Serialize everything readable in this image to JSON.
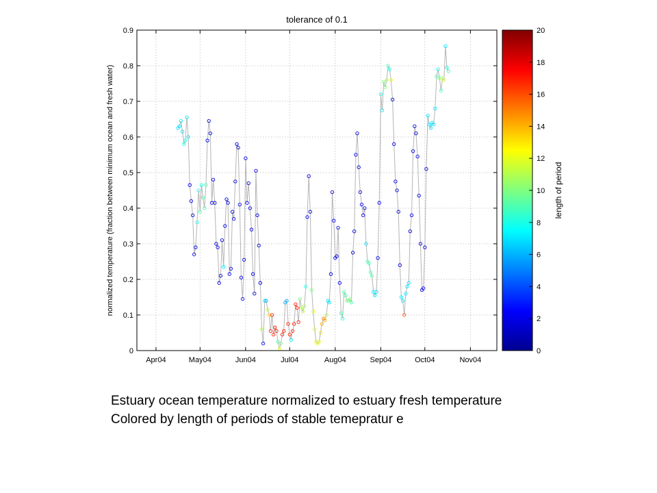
{
  "chart_data": {
    "type": "scatter",
    "title": "tolerance of 0.1",
    "ylabel": "normalized temperature (fraction between minimum ocean and fresh water)",
    "colorbar_label": "length of period",
    "ylim": [
      0,
      0.9
    ],
    "yticks": [
      0,
      0.1,
      0.2,
      0.3,
      0.4,
      0.5,
      0.6,
      0.7,
      0.8,
      0.9
    ],
    "ytick_labels": [
      "0",
      "0.1",
      "0.2",
      "0.3",
      "0.4",
      "0.5",
      "0.6",
      "0.7",
      "0.8",
      "0.9"
    ],
    "xlim": [
      "2004-03-19",
      "2004-11-19"
    ],
    "xticks": [
      "2004-04-01",
      "2004-05-01",
      "2004-06-01",
      "2004-07-01",
      "2004-08-01",
      "2004-09-01",
      "2004-10-01",
      "2004-11-01"
    ],
    "xtick_labels": [
      "Apr04",
      "May04",
      "Jun04",
      "Jul04",
      "Aug04",
      "Sep04",
      "Oct04",
      "Nov04"
    ],
    "colorbar_range": [
      0,
      20
    ],
    "colorbar_ticks": [
      0,
      2,
      4,
      6,
      8,
      10,
      12,
      14,
      16,
      18,
      20
    ],
    "grid": true,
    "colormap": "jet",
    "line_color": "#b4b4b4",
    "points": [
      {
        "x": "2004-04-16",
        "y": 0.625,
        "c": 7
      },
      {
        "x": "2004-04-17",
        "y": 0.63,
        "c": 7
      },
      {
        "x": "2004-04-18",
        "y": 0.645,
        "c": 7
      },
      {
        "x": "2004-04-19",
        "y": 0.615,
        "c": 7
      },
      {
        "x": "2004-04-20",
        "y": 0.58,
        "c": 8
      },
      {
        "x": "2004-04-21",
        "y": 0.59,
        "c": 8
      },
      {
        "x": "2004-04-22",
        "y": 0.655,
        "c": 7
      },
      {
        "x": "2004-04-23",
        "y": 0.6,
        "c": 7
      },
      {
        "x": "2004-04-24",
        "y": 0.465,
        "c": 2
      },
      {
        "x": "2004-04-25",
        "y": 0.42,
        "c": 2
      },
      {
        "x": "2004-04-26",
        "y": 0.38,
        "c": 2
      },
      {
        "x": "2004-04-27",
        "y": 0.27,
        "c": 2
      },
      {
        "x": "2004-04-28",
        "y": 0.29,
        "c": 2
      },
      {
        "x": "2004-04-29",
        "y": 0.36,
        "c": 8
      },
      {
        "x": "2004-04-30",
        "y": 0.45,
        "c": 8
      },
      {
        "x": "2004-05-01",
        "y": 0.39,
        "c": 9
      },
      {
        "x": "2004-05-02",
        "y": 0.465,
        "c": 8
      },
      {
        "x": "2004-05-03",
        "y": 0.43,
        "c": 9
      },
      {
        "x": "2004-05-04",
        "y": 0.4,
        "c": 9
      },
      {
        "x": "2004-05-05",
        "y": 0.465,
        "c": 9
      },
      {
        "x": "2004-05-06",
        "y": 0.59,
        "c": 2
      },
      {
        "x": "2004-05-07",
        "y": 0.645,
        "c": 2
      },
      {
        "x": "2004-05-08",
        "y": 0.61,
        "c": 2
      },
      {
        "x": "2004-05-09",
        "y": 0.415,
        "c": 2
      },
      {
        "x": "2004-05-10",
        "y": 0.48,
        "c": 2
      },
      {
        "x": "2004-05-11",
        "y": 0.415,
        "c": 2
      },
      {
        "x": "2004-05-12",
        "y": 0.3,
        "c": 2
      },
      {
        "x": "2004-05-13",
        "y": 0.29,
        "c": 2
      },
      {
        "x": "2004-05-14",
        "y": 0.19,
        "c": 2
      },
      {
        "x": "2004-05-15",
        "y": 0.21,
        "c": 2
      },
      {
        "x": "2004-05-16",
        "y": 0.31,
        "c": 2
      },
      {
        "x": "2004-05-17",
        "y": 0.235,
        "c": 7
      },
      {
        "x": "2004-05-18",
        "y": 0.35,
        "c": 2
      },
      {
        "x": "2004-05-19",
        "y": 0.425,
        "c": 2
      },
      {
        "x": "2004-05-20",
        "y": 0.415,
        "c": 2
      },
      {
        "x": "2004-05-21",
        "y": 0.215,
        "c": 2
      },
      {
        "x": "2004-05-22",
        "y": 0.23,
        "c": 2
      },
      {
        "x": "2004-05-23",
        "y": 0.39,
        "c": 2
      },
      {
        "x": "2004-05-24",
        "y": 0.37,
        "c": 2
      },
      {
        "x": "2004-05-25",
        "y": 0.475,
        "c": 2
      },
      {
        "x": "2004-05-26",
        "y": 0.58,
        "c": 2
      },
      {
        "x": "2004-05-27",
        "y": 0.57,
        "c": 2
      },
      {
        "x": "2004-05-28",
        "y": 0.41,
        "c": 2
      },
      {
        "x": "2004-05-29",
        "y": 0.205,
        "c": 2
      },
      {
        "x": "2004-05-30",
        "y": 0.145,
        "c": 2
      },
      {
        "x": "2004-05-31",
        "y": 0.255,
        "c": 2
      },
      {
        "x": "2004-06-01",
        "y": 0.54,
        "c": 2
      },
      {
        "x": "2004-06-02",
        "y": 0.415,
        "c": 2
      },
      {
        "x": "2004-06-03",
        "y": 0.47,
        "c": 2
      },
      {
        "x": "2004-06-04",
        "y": 0.4,
        "c": 2
      },
      {
        "x": "2004-06-05",
        "y": 0.34,
        "c": 2
      },
      {
        "x": "2004-06-06",
        "y": 0.215,
        "c": 2
      },
      {
        "x": "2004-06-07",
        "y": 0.16,
        "c": 2
      },
      {
        "x": "2004-06-08",
        "y": 0.505,
        "c": 2
      },
      {
        "x": "2004-06-09",
        "y": 0.38,
        "c": 2
      },
      {
        "x": "2004-06-10",
        "y": 0.295,
        "c": 2
      },
      {
        "x": "2004-06-11",
        "y": 0.19,
        "c": 2
      },
      {
        "x": "2004-06-12",
        "y": 0.06,
        "c": 11
      },
      {
        "x": "2004-06-13",
        "y": 0.02,
        "c": 2
      },
      {
        "x": "2004-06-14",
        "y": 0.14,
        "c": 7
      },
      {
        "x": "2004-06-15",
        "y": 0.14,
        "c": 6
      },
      {
        "x": "2004-06-16",
        "y": 0.115,
        "c": 11
      },
      {
        "x": "2004-06-17",
        "y": 0.1,
        "c": 13
      },
      {
        "x": "2004-06-18",
        "y": 0.055,
        "c": 17
      },
      {
        "x": "2004-06-19",
        "y": 0.1,
        "c": 17
      },
      {
        "x": "2004-06-20",
        "y": 0.045,
        "c": 17
      },
      {
        "x": "2004-06-21",
        "y": 0.065,
        "c": 17
      },
      {
        "x": "2004-06-22",
        "y": 0.055,
        "c": 17
      },
      {
        "x": "2004-06-23",
        "y": 0.025,
        "c": 9
      },
      {
        "x": "2004-06-24",
        "y": 0.005,
        "c": 12
      },
      {
        "x": "2004-06-25",
        "y": 0.02,
        "c": 10
      },
      {
        "x": "2004-06-26",
        "y": 0.045,
        "c": 17
      },
      {
        "x": "2004-06-27",
        "y": 0.055,
        "c": 17
      },
      {
        "x": "2004-06-28",
        "y": 0.135,
        "c": 6
      },
      {
        "x": "2004-06-29",
        "y": 0.14,
        "c": 6
      },
      {
        "x": "2004-06-30",
        "y": 0.075,
        "c": 17
      },
      {
        "x": "2004-07-01",
        "y": 0.045,
        "c": 17
      },
      {
        "x": "2004-07-02",
        "y": 0.03,
        "c": 7
      },
      {
        "x": "2004-07-03",
        "y": 0.055,
        "c": 17
      },
      {
        "x": "2004-07-04",
        "y": 0.075,
        "c": 17
      },
      {
        "x": "2004-07-05",
        "y": 0.13,
        "c": 17
      },
      {
        "x": "2004-07-06",
        "y": 0.12,
        "c": 17
      },
      {
        "x": "2004-07-07",
        "y": 0.08,
        "c": 17
      },
      {
        "x": "2004-07-08",
        "y": 0.145,
        "c": 10
      },
      {
        "x": "2004-07-09",
        "y": 0.12,
        "c": 11
      },
      {
        "x": "2004-07-10",
        "y": 0.11,
        "c": 11
      },
      {
        "x": "2004-07-11",
        "y": 0.125,
        "c": 11
      },
      {
        "x": "2004-07-12",
        "y": 0.18,
        "c": 8
      },
      {
        "x": "2004-07-13",
        "y": 0.375,
        "c": 2
      },
      {
        "x": "2004-07-14",
        "y": 0.49,
        "c": 2
      },
      {
        "x": "2004-07-15",
        "y": 0.39,
        "c": 2
      },
      {
        "x": "2004-07-16",
        "y": 0.17,
        "c": 10
      },
      {
        "x": "2004-07-17",
        "y": 0.11,
        "c": 12
      },
      {
        "x": "2004-07-18",
        "y": 0.06,
        "c": 12
      },
      {
        "x": "2004-07-19",
        "y": 0.025,
        "c": 12
      },
      {
        "x": "2004-07-20",
        "y": 0.02,
        "c": 12
      },
      {
        "x": "2004-07-21",
        "y": 0.025,
        "c": 12
      },
      {
        "x": "2004-07-22",
        "y": 0.05,
        "c": 13
      },
      {
        "x": "2004-07-23",
        "y": 0.075,
        "c": 14
      },
      {
        "x": "2004-07-24",
        "y": 0.09,
        "c": 15
      },
      {
        "x": "2004-07-25",
        "y": 0.085,
        "c": 14
      },
      {
        "x": "2004-07-26",
        "y": 0.1,
        "c": 11
      },
      {
        "x": "2004-07-27",
        "y": 0.14,
        "c": 7
      },
      {
        "x": "2004-07-28",
        "y": 0.135,
        "c": 7
      },
      {
        "x": "2004-07-29",
        "y": 0.215,
        "c": 2
      },
      {
        "x": "2004-07-30",
        "y": 0.445,
        "c": 2
      },
      {
        "x": "2004-07-31",
        "y": 0.365,
        "c": 2
      },
      {
        "x": "2004-08-01",
        "y": 0.26,
        "c": 2
      },
      {
        "x": "2004-08-02",
        "y": 0.265,
        "c": 2
      },
      {
        "x": "2004-08-03",
        "y": 0.345,
        "c": 2
      },
      {
        "x": "2004-08-04",
        "y": 0.19,
        "c": 2
      },
      {
        "x": "2004-08-05",
        "y": 0.105,
        "c": 9
      },
      {
        "x": "2004-08-06",
        "y": 0.09,
        "c": 8
      },
      {
        "x": "2004-08-07",
        "y": 0.165,
        "c": 9
      },
      {
        "x": "2004-08-08",
        "y": 0.155,
        "c": 9
      },
      {
        "x": "2004-08-09",
        "y": 0.14,
        "c": 10
      },
      {
        "x": "2004-08-10",
        "y": 0.14,
        "c": 10
      },
      {
        "x": "2004-08-11",
        "y": 0.145,
        "c": 10
      },
      {
        "x": "2004-08-12",
        "y": 0.135,
        "c": 9
      },
      {
        "x": "2004-08-13",
        "y": 0.275,
        "c": 2
      },
      {
        "x": "2004-08-14",
        "y": 0.335,
        "c": 2
      },
      {
        "x": "2004-08-15",
        "y": 0.55,
        "c": 2
      },
      {
        "x": "2004-08-16",
        "y": 0.61,
        "c": 2
      },
      {
        "x": "2004-08-17",
        "y": 0.515,
        "c": 2
      },
      {
        "x": "2004-08-18",
        "y": 0.445,
        "c": 2
      },
      {
        "x": "2004-08-19",
        "y": 0.41,
        "c": 2
      },
      {
        "x": "2004-08-20",
        "y": 0.38,
        "c": 2
      },
      {
        "x": "2004-08-21",
        "y": 0.4,
        "c": 2
      },
      {
        "x": "2004-08-22",
        "y": 0.3,
        "c": 7
      },
      {
        "x": "2004-08-23",
        "y": 0.25,
        "c": 9
      },
      {
        "x": "2004-08-24",
        "y": 0.245,
        "c": 9
      },
      {
        "x": "2004-08-25",
        "y": 0.22,
        "c": 9
      },
      {
        "x": "2004-08-26",
        "y": 0.21,
        "c": 9
      },
      {
        "x": "2004-08-27",
        "y": 0.165,
        "c": 7
      },
      {
        "x": "2004-08-28",
        "y": 0.155,
        "c": 7
      },
      {
        "x": "2004-08-29",
        "y": 0.165,
        "c": 7
      },
      {
        "x": "2004-08-30",
        "y": 0.26,
        "c": 2
      },
      {
        "x": "2004-08-31",
        "y": 0.415,
        "c": 2
      },
      {
        "x": "2004-09-01",
        "y": 0.72,
        "c": 8
      },
      {
        "x": "2004-09-02",
        "y": 0.675,
        "c": 7
      },
      {
        "x": "2004-09-03",
        "y": 0.755,
        "c": 10
      },
      {
        "x": "2004-09-04",
        "y": 0.74,
        "c": 10
      },
      {
        "x": "2004-09-05",
        "y": 0.76,
        "c": 11
      },
      {
        "x": "2004-09-06",
        "y": 0.8,
        "c": 9
      },
      {
        "x": "2004-09-07",
        "y": 0.79,
        "c": 8
      },
      {
        "x": "2004-09-08",
        "y": 0.76,
        "c": 12
      },
      {
        "x": "2004-09-09",
        "y": 0.705,
        "c": 2
      },
      {
        "x": "2004-09-10",
        "y": 0.58,
        "c": 2
      },
      {
        "x": "2004-09-11",
        "y": 0.475,
        "c": 2
      },
      {
        "x": "2004-09-12",
        "y": 0.45,
        "c": 2
      },
      {
        "x": "2004-09-13",
        "y": 0.39,
        "c": 2
      },
      {
        "x": "2004-09-14",
        "y": 0.24,
        "c": 2
      },
      {
        "x": "2004-09-15",
        "y": 0.15,
        "c": 7
      },
      {
        "x": "2004-09-16",
        "y": 0.14,
        "c": 7
      },
      {
        "x": "2004-09-17",
        "y": 0.1,
        "c": 16
      },
      {
        "x": "2004-09-18",
        "y": 0.16,
        "c": 7
      },
      {
        "x": "2004-09-19",
        "y": 0.18,
        "c": 7
      },
      {
        "x": "2004-09-20",
        "y": 0.19,
        "c": 7
      },
      {
        "x": "2004-09-21",
        "y": 0.335,
        "c": 2
      },
      {
        "x": "2004-09-22",
        "y": 0.38,
        "c": 2
      },
      {
        "x": "2004-09-23",
        "y": 0.56,
        "c": 2
      },
      {
        "x": "2004-09-24",
        "y": 0.63,
        "c": 2
      },
      {
        "x": "2004-09-25",
        "y": 0.61,
        "c": 2
      },
      {
        "x": "2004-09-26",
        "y": 0.545,
        "c": 2
      },
      {
        "x": "2004-09-27",
        "y": 0.435,
        "c": 2
      },
      {
        "x": "2004-09-28",
        "y": 0.3,
        "c": 2
      },
      {
        "x": "2004-09-29",
        "y": 0.17,
        "c": 2
      },
      {
        "x": "2004-09-30",
        "y": 0.175,
        "c": 2
      },
      {
        "x": "2004-10-01",
        "y": 0.29,
        "c": 2
      },
      {
        "x": "2004-10-02",
        "y": 0.51,
        "c": 2
      },
      {
        "x": "2004-10-03",
        "y": 0.66,
        "c": 7
      },
      {
        "x": "2004-10-04",
        "y": 0.635,
        "c": 7
      },
      {
        "x": "2004-10-05",
        "y": 0.625,
        "c": 7
      },
      {
        "x": "2004-10-06",
        "y": 0.64,
        "c": 7
      },
      {
        "x": "2004-10-07",
        "y": 0.635,
        "c": 7
      },
      {
        "x": "2004-10-08",
        "y": 0.68,
        "c": 7
      },
      {
        "x": "2004-10-09",
        "y": 0.77,
        "c": 9
      },
      {
        "x": "2004-10-10",
        "y": 0.79,
        "c": 8
      },
      {
        "x": "2004-10-11",
        "y": 0.765,
        "c": 10
      },
      {
        "x": "2004-10-12",
        "y": 0.73,
        "c": 9
      },
      {
        "x": "2004-10-13",
        "y": 0.765,
        "c": 11
      },
      {
        "x": "2004-10-14",
        "y": 0.76,
        "c": 12
      },
      {
        "x": "2004-10-15",
        "y": 0.855,
        "c": 7
      },
      {
        "x": "2004-10-16",
        "y": 0.795,
        "c": 8
      },
      {
        "x": "2004-10-17",
        "y": 0.785,
        "c": 9
      }
    ]
  },
  "caption": {
    "line1": "Estuary ocean temperature normalized to estuary fresh temperature",
    "line2": "Colored by length of periods of stable temepratur e"
  }
}
